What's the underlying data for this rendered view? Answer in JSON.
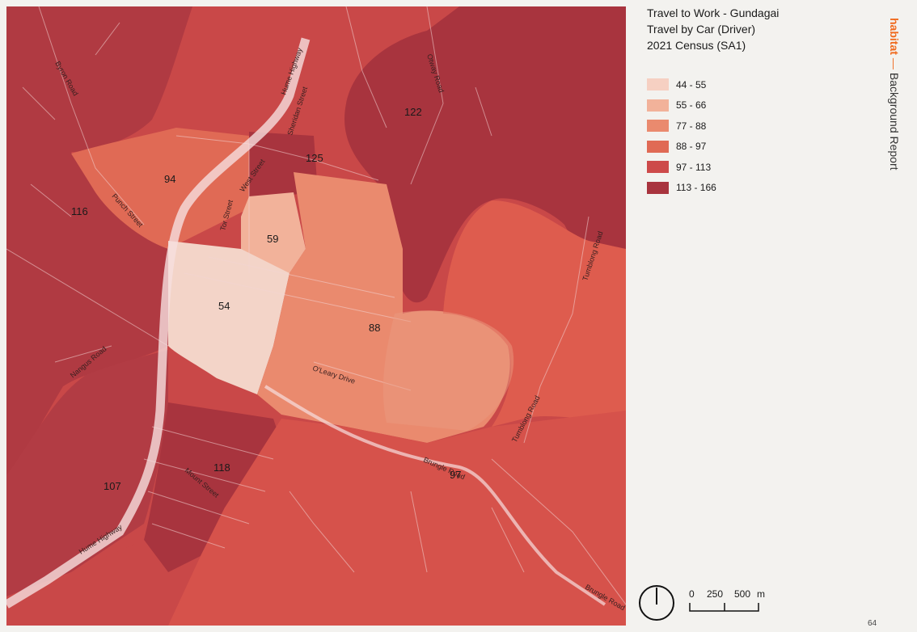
{
  "legend": {
    "title_lines": [
      "Travel to Work - Gundagai",
      "Travel by Car (Driver)",
      "2021 Census (SA1)"
    ],
    "items": [
      {
        "label": "44 - 55",
        "color": "#f6d0c2"
      },
      {
        "label": "55 - 66",
        "color": "#f2b29a"
      },
      {
        "label": "77 - 88",
        "color": "#ea8a6e"
      },
      {
        "label": "88 - 97",
        "color": "#e06a55"
      },
      {
        "label": "97 - 113",
        "color": "#cd4a4a"
      },
      {
        "label": "113 - 166",
        "color": "#a8343e"
      }
    ]
  },
  "map": {
    "area_labels": [
      "122",
      "125",
      "94",
      "116",
      "59",
      "54",
      "88",
      "118",
      "107",
      "97"
    ],
    "road_labels": [
      "Hume Highway",
      "Sheridan Street",
      "Byron Road",
      "Punch Street",
      "West Street",
      "Tor Street",
      "Otway Road",
      "Nangus Road",
      "O'Leary Drive",
      "Mount Street",
      "Hume Highway",
      "Brungle Road",
      "Tumblong Road",
      "Brungle Road",
      "Tumblong Road"
    ]
  },
  "brand": {
    "name": "habitat",
    "dash": "—",
    "section": "Background Report"
  },
  "scale": {
    "labels": [
      "0",
      "250",
      "500",
      "m"
    ]
  },
  "page_number": "64",
  "icons": {
    "north_arrow": "north-arrow-icon",
    "scale_bar": "scale-bar-icon"
  }
}
